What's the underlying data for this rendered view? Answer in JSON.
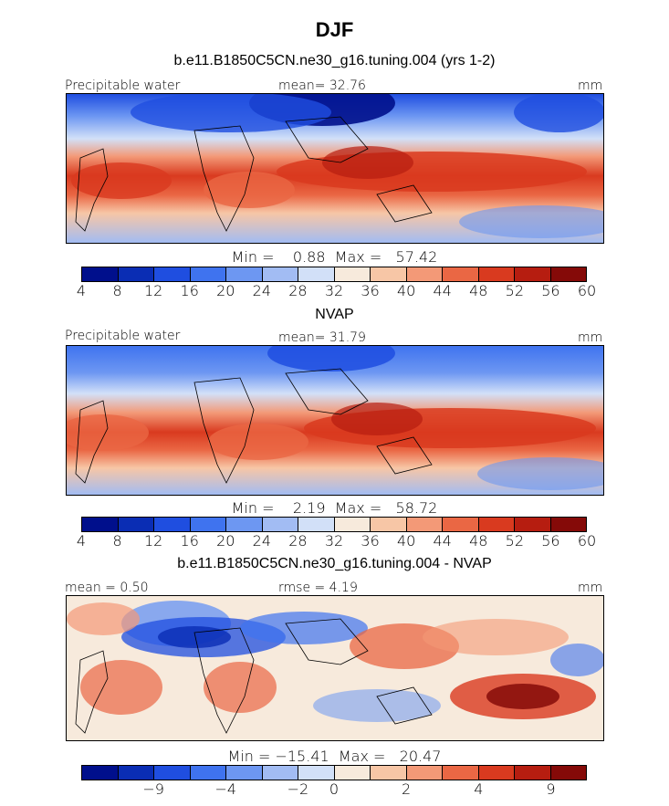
{
  "title": "DJF",
  "colors": {
    "abs_scale": [
      "#000f8c",
      "#0a2db4",
      "#1f4ee0",
      "#3f73ef",
      "#6d97f2",
      "#a2bcf3",
      "#d2e0f8",
      "#f7eadc",
      "#f7c6a6",
      "#f39977",
      "#ea6744",
      "#d93a1f",
      "#b61d10",
      "#850a08"
    ],
    "diff_scale": [
      "#000f8c",
      "#0a2db4",
      "#1f4ee0",
      "#3f73ef",
      "#6d97f2",
      "#a2bcf3",
      "#d2e0f8",
      "#f7eadc",
      "#f7c6a6",
      "#f39977",
      "#ea6744",
      "#d93a1f",
      "#b61d10",
      "#850a08"
    ]
  },
  "panels": [
    {
      "subtitle": "b.e11.B1850C5CN.ne30_g16.tuning.004 (yrs 1-2)",
      "left_label": "Precipitable water",
      "center_label": "mean=  32.76",
      "right_label": "mm",
      "minmax": "Min =    0.88  Max =   57.42",
      "ticks": [
        "4",
        "8",
        "12",
        "16",
        "20",
        "24",
        "28",
        "32",
        "36",
        "40",
        "44",
        "48",
        "52",
        "56",
        "60"
      ]
    },
    {
      "subtitle": "NVAP",
      "left_label": "Precipitable water",
      "center_label": "mean=  31.79",
      "right_label": "mm",
      "minmax": "Min =    2.19  Max =   58.72",
      "ticks": [
        "4",
        "8",
        "12",
        "16",
        "20",
        "24",
        "28",
        "32",
        "36",
        "40",
        "44",
        "48",
        "52",
        "56",
        "60"
      ]
    },
    {
      "subtitle": "b.e11.B1850C5CN.ne30_g16.tuning.004 - NVAP",
      "left_label": "mean =    0.50",
      "center_label": "rmse =    4.19",
      "right_label": "mm",
      "minmax": "Min = −15.41  Max =   20.47",
      "ticks": [
        "−9",
        "−4",
        "−2",
        "0",
        "2",
        "4",
        "9"
      ]
    }
  ]
}
